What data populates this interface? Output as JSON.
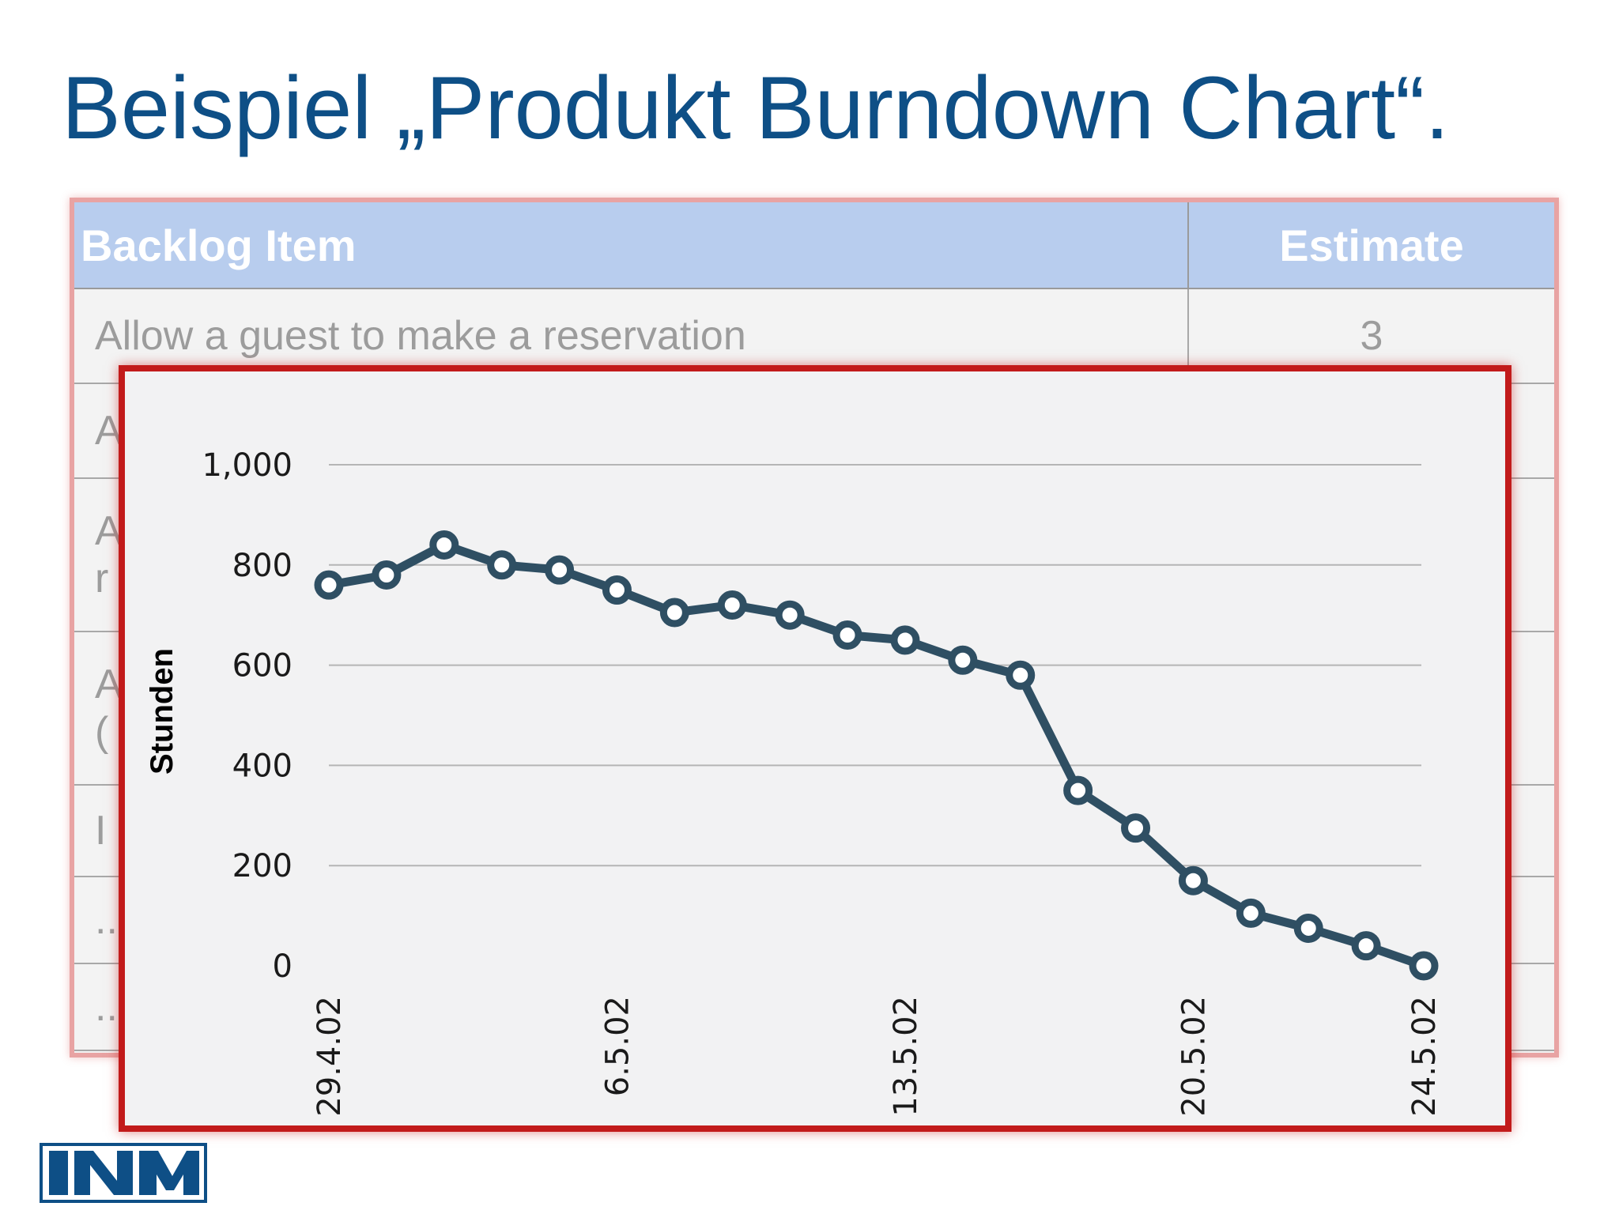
{
  "title": "Beispiel „Produkt Burndown Chart“.",
  "backlog": {
    "headers": {
      "item": "Backlog Item",
      "estimate": "Estimate"
    },
    "rows": [
      {
        "item": "Allow a guest to make a reservation",
        "estimate": "3"
      },
      {
        "item": "A",
        "estimate": ""
      },
      {
        "item": "A",
        "item2": "r",
        "estimate": ""
      },
      {
        "item": "A",
        "item2": "(",
        "estimate": ""
      },
      {
        "item": "I",
        "estimate": ""
      },
      {
        "item": "..",
        "estimate": ""
      },
      {
        "item": "..",
        "estimate": ""
      }
    ]
  },
  "chart_data": {
    "type": "line",
    "title": "",
    "xlabel": "",
    "ylabel": "Stunden",
    "ylim": [
      0,
      1000
    ],
    "y_ticks": [
      0,
      200,
      400,
      600,
      800,
      1000
    ],
    "y_tick_labels": [
      "0",
      "200",
      "400",
      "600",
      "800",
      "1,000"
    ],
    "x_tick_labels": [
      {
        "index": 0,
        "label": "29.4.02"
      },
      {
        "index": 5,
        "label": "6.5.02"
      },
      {
        "index": 10,
        "label": "13.5.02"
      },
      {
        "index": 15,
        "label": "20.5.02"
      },
      {
        "index": 19,
        "label": "24.5.02"
      }
    ],
    "grid": true,
    "line_color": "#2f4f63",
    "series": [
      {
        "values": [
          760,
          780,
          840,
          800,
          790,
          750,
          705,
          720,
          700,
          660,
          650,
          610,
          580,
          350,
          275,
          170,
          105,
          75,
          40,
          0
        ]
      }
    ]
  },
  "logo": {
    "text": "INM",
    "color": "#0e4f86"
  }
}
